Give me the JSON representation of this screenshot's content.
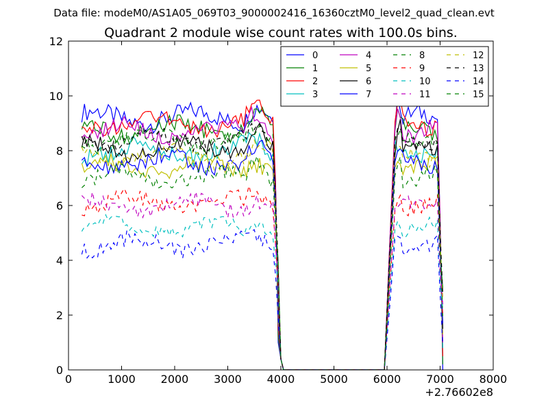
{
  "suptitle": "Data file: modeM0/AS1A05_069T03_9000002416_16360cztM0_level2_quad_clean.evt",
  "chart_data": {
    "type": "line",
    "title": "Quadrant 2 module wise count rates with 100.0s bins.",
    "xlabel": "",
    "ylabel": "",
    "x_offset_label": "+2.76602e8",
    "xlim": [
      0,
      8000
    ],
    "ylim": [
      0,
      12
    ],
    "x_ticks": [
      "0",
      "1000",
      "2000",
      "3000",
      "4000",
      "5000",
      "6000",
      "7000",
      "8000"
    ],
    "y_ticks": [
      "0",
      "2",
      "4",
      "6",
      "8",
      "10",
      "12"
    ],
    "grid": false,
    "legend_position": "top-right",
    "series": [
      {
        "name": "0",
        "color": "#0000ff",
        "dash": "solid",
        "active_level": 9.2,
        "peak": 10.3,
        "amp": 0.35,
        "phase": 0.0,
        "end": 0.0
      },
      {
        "name": "1",
        "color": "#008000",
        "dash": "solid",
        "active_level": 8.8,
        "peak": 9.8,
        "amp": 0.3,
        "phase": 1.1,
        "end": 0.2
      },
      {
        "name": "2",
        "color": "#ff0000",
        "dash": "solid",
        "active_level": 9.0,
        "peak": 9.9,
        "amp": 0.3,
        "phase": 2.2,
        "end": 0.5
      },
      {
        "name": "3",
        "color": "#00bfbf",
        "dash": "solid",
        "active_level": 8.0,
        "peak": 8.5,
        "amp": 0.35,
        "phase": 3.3,
        "end": 0.8
      },
      {
        "name": "4",
        "color": "#bf00bf",
        "dash": "solid",
        "active_level": 8.7,
        "peak": 10.3,
        "amp": 0.3,
        "phase": 4.4,
        "end": 1.0
      },
      {
        "name": "5",
        "color": "#bfbf00",
        "dash": "solid",
        "active_level": 7.4,
        "peak": 8.0,
        "amp": 0.3,
        "phase": 5.5,
        "end": 1.3
      },
      {
        "name": "6",
        "color": "#000000",
        "dash": "solid",
        "active_level": 8.1,
        "peak": 9.7,
        "amp": 0.3,
        "phase": 0.6,
        "end": 1.5
      },
      {
        "name": "7",
        "color": "#0000ff",
        "dash": "solid",
        "active_level": 7.6,
        "peak": 8.5,
        "amp": 0.3,
        "phase": 1.7,
        "end": 1.7
      },
      {
        "name": "8",
        "color": "#008000",
        "dash": "dashed",
        "active_level": 8.4,
        "peak": 8.8,
        "amp": 0.3,
        "phase": 2.8,
        "end": 1.9
      },
      {
        "name": "9",
        "color": "#ff0000",
        "dash": "dashed",
        "active_level": 6.1,
        "peak": 6.8,
        "amp": 0.3,
        "phase": 3.9,
        "end": 2.0
      },
      {
        "name": "10",
        "color": "#00bfbf",
        "dash": "dashed",
        "active_level": 5.2,
        "peak": 5.7,
        "amp": 0.25,
        "phase": 5.0,
        "end": 2.2
      },
      {
        "name": "11",
        "color": "#bf00bf",
        "dash": "dashed",
        "active_level": 6.0,
        "peak": 6.5,
        "amp": 0.3,
        "phase": 0.3,
        "end": 2.4
      },
      {
        "name": "12",
        "color": "#bfbf00",
        "dash": "dashed",
        "active_level": 7.8,
        "peak": 8.2,
        "amp": 0.3,
        "phase": 1.4,
        "end": 2.6
      },
      {
        "name": "13",
        "color": "#000000",
        "dash": "dashed",
        "active_level": 8.4,
        "peak": 8.7,
        "amp": 0.25,
        "phase": 2.5,
        "end": 2.8
      },
      {
        "name": "14",
        "color": "#0000ff",
        "dash": "dashed",
        "active_level": 4.6,
        "peak": 5.0,
        "amp": 0.3,
        "phase": 3.6,
        "end": 0.9
      },
      {
        "name": "15",
        "color": "#008000",
        "dash": "dashed",
        "active_level": 7.0,
        "peak": 8.6,
        "amp": 0.3,
        "phase": 4.7,
        "end": 3.0
      }
    ],
    "segments": {
      "active1": [
        250,
        3850
      ],
      "drop1": [
        3850,
        4050
      ],
      "quiet": [
        4050,
        5950
      ],
      "active2": [
        6150,
        6950
      ],
      "drop_end": 7050
    }
  }
}
